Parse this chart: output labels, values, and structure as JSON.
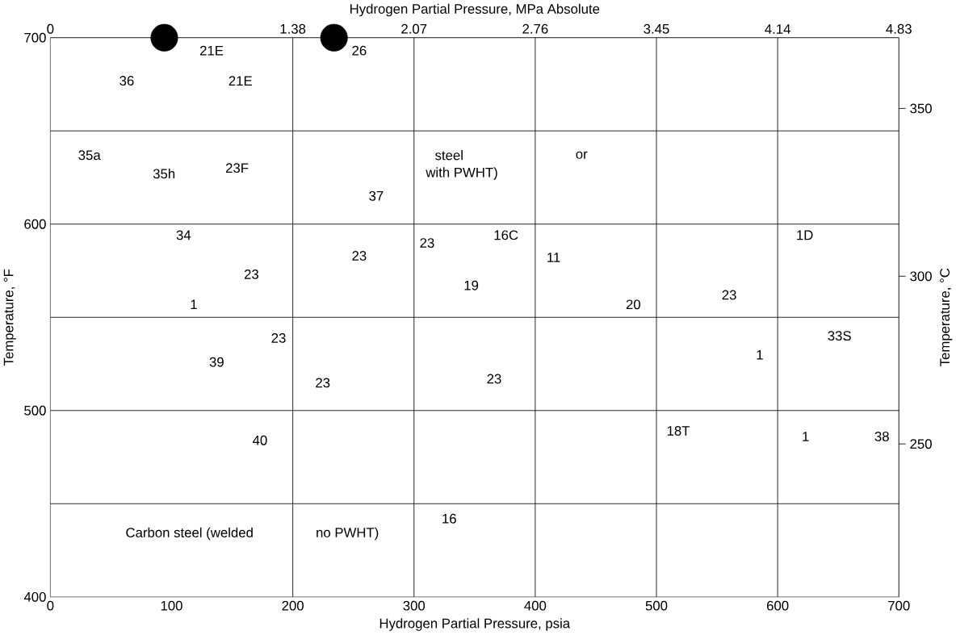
{
  "chart_data": {
    "type": "scatter",
    "xlabel": "Hydrogen Partial Pressure, psia",
    "ylabel": "Temperature, °F",
    "x2label": "Hydrogen Partial Pressure, MPa Absolute",
    "y2label": "Temperature, °C",
    "xlim": [
      0,
      700
    ],
    "xticks": [
      0,
      100,
      200,
      300,
      400,
      500,
      600,
      700
    ],
    "ylim": [
      400,
      700
    ],
    "yticks": [
      400,
      500,
      600,
      700
    ],
    "x2lim": [
      0,
      4.83
    ],
    "x2ticks": [
      0,
      1.38,
      2.07,
      2.76,
      3.45,
      4.14,
      4.83
    ],
    "y2lim": [
      204.4,
      371.1
    ],
    "y2ticks": [
      250,
      300,
      350
    ],
    "series": [
      {
        "color": "#000000",
        "x": [
          94,
          234
        ],
        "values": [
          700,
          700
        ]
      }
    ],
    "marker": "circle",
    "ref_lines": [
      {
        "axis": "x",
        "value": 200
      },
      {
        "axis": "x",
        "value": 300
      },
      {
        "axis": "x",
        "value": 400
      },
      {
        "axis": "x",
        "value": 500
      },
      {
        "axis": "x",
        "value": 600
      },
      {
        "axis": "y",
        "value": 450
      },
      {
        "axis": "y",
        "value": 500
      },
      {
        "axis": "y",
        "value": 550
      },
      {
        "axis": "y",
        "value": 600
      },
      {
        "axis": "y",
        "value": 650
      }
    ],
    "annotations": [
      "21E",
      "26",
      "36",
      "21E",
      "35a",
      "35h",
      "23F",
      "steel",
      "or",
      "with PWHT)",
      "37",
      "34",
      "23",
      "23",
      "16C",
      "11",
      "23",
      "19",
      "20",
      "23",
      "1D",
      "1",
      "23",
      "39",
      "23",
      "23",
      "1",
      "33S",
      "40",
      "18T",
      "1",
      "38",
      "Carbon steel (welded",
      "no PWHT)",
      "16"
    ]
  }
}
